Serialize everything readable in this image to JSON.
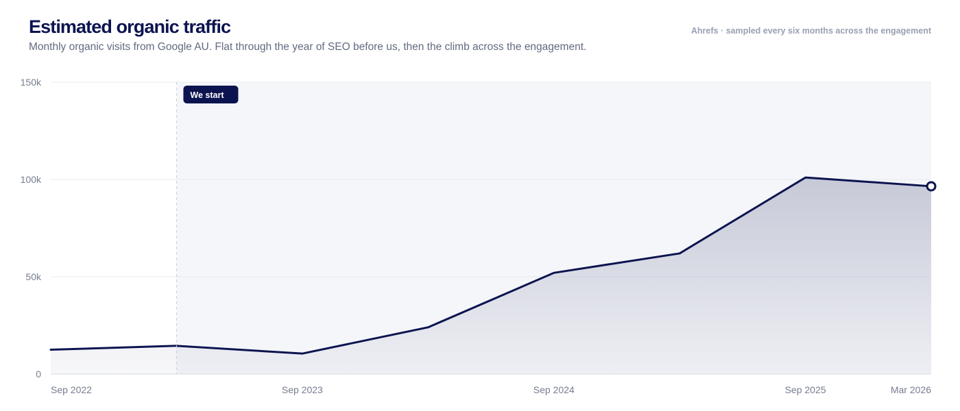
{
  "header": {
    "title": "Estimated organic traffic",
    "subtitle": "Monthly organic visits from Google AU. Flat through the year of SEO before us, then the climb across the engagement.",
    "source": "Ahrefs · sampled every six months across the engagement"
  },
  "chart_data": {
    "type": "area",
    "title": "Estimated organic traffic",
    "xlabel": "",
    "ylabel": "",
    "x": [
      "Sep 2022",
      "Mar 2023",
      "Sep 2023",
      "Mar 2024",
      "Sep 2024",
      "Mar 2025",
      "Sep 2025",
      "Mar 2026"
    ],
    "x_tick_labels": [
      "Sep 2022",
      "Sep 2023",
      "Sep 2024",
      "Sep 2025",
      "Mar 2026"
    ],
    "series": [
      {
        "values": [
          12500,
          14500,
          10500,
          24000,
          52000,
          62000,
          101000,
          96500
        ]
      }
    ],
    "ylim": [
      0,
      150000
    ],
    "y_ticks": [
      0,
      50000,
      100000,
      150000
    ],
    "y_tick_labels": [
      "0",
      "50k",
      "100k",
      "150k"
    ],
    "annotation": {
      "label": "We start",
      "x": "Mar 2023"
    },
    "grid": true,
    "colors": {
      "line": "#0c1450",
      "fill": "#0c1450",
      "engagement_bg": "#f5f6f9",
      "grid": "#e9ebf0"
    }
  }
}
